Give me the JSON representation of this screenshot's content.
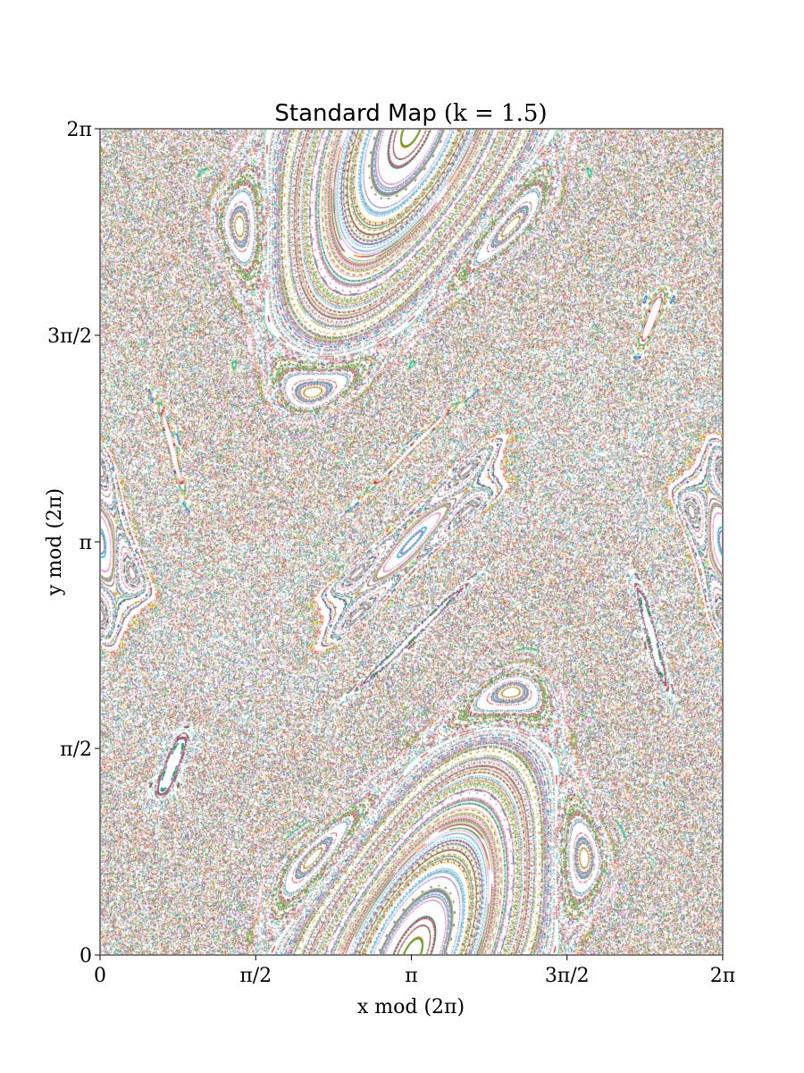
{
  "chart_data": {
    "type": "scatter",
    "title": "Standard Map (k = 1.5)",
    "title_parts": {
      "name": "Standard Map",
      "math": "(k = 1.5)"
    },
    "parameter_k": 1.5,
    "xlabel": "x mod (2π)",
    "ylabel": "y mod (2π)",
    "xlim": [
      0,
      6.2832
    ],
    "ylim": [
      0,
      6.2832
    ],
    "x_ticks": [
      {
        "value": 0,
        "label": "0"
      },
      {
        "value": 1.5708,
        "label": "π/2"
      },
      {
        "value": 3.1416,
        "label": "π"
      },
      {
        "value": 4.7124,
        "label": "3π/2"
      },
      {
        "value": 6.2832,
        "label": "2π"
      }
    ],
    "y_ticks": [
      {
        "value": 0,
        "label": "0"
      },
      {
        "value": 1.5708,
        "label": "π/2"
      },
      {
        "value": 3.1416,
        "label": "π"
      },
      {
        "value": 4.7124,
        "label": "3π/2"
      },
      {
        "value": 6.2832,
        "label": "2π"
      }
    ],
    "grid": false,
    "legend": "none",
    "marker": "single-pixel dots",
    "point_colors": [
      "#1f77b4",
      "#ff7f0e",
      "#2ca02c",
      "#d62728",
      "#9467bd",
      "#8c564b",
      "#e377c2",
      "#7f7f7f",
      "#bcbd22",
      "#17becf"
    ]
  }
}
